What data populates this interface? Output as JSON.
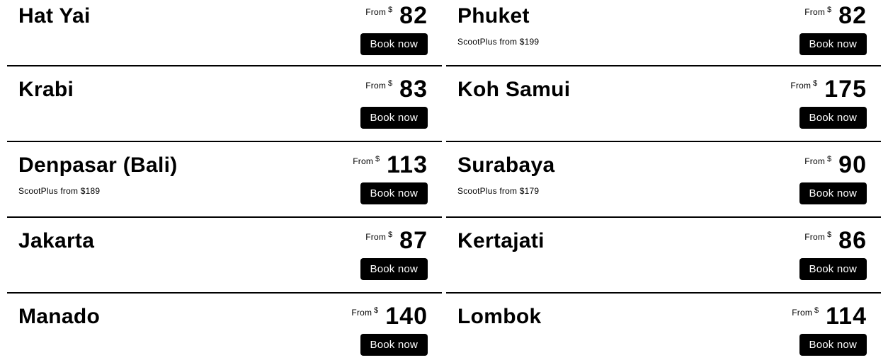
{
  "labels": {
    "from": "From",
    "currency": "$",
    "book_now": "Book now"
  },
  "colors": {
    "text": "#000000",
    "button_background": "#000000",
    "button_text": "#ffffff",
    "divider": "#000000",
    "page_background": "#ffffff"
  },
  "destinations": [
    {
      "name": "Hat Yai",
      "price": "82",
      "scootplus": ""
    },
    {
      "name": "Phuket",
      "price": "82",
      "scootplus": "ScootPlus from $199"
    },
    {
      "name": "Krabi",
      "price": "83",
      "scootplus": ""
    },
    {
      "name": "Koh Samui",
      "price": "175",
      "scootplus": ""
    },
    {
      "name": "Denpasar (Bali)",
      "price": "113",
      "scootplus": "ScootPlus from $189"
    },
    {
      "name": "Surabaya",
      "price": "90",
      "scootplus": "ScootPlus from $179"
    },
    {
      "name": "Jakarta",
      "price": "87",
      "scootplus": ""
    },
    {
      "name": "Kertajati",
      "price": "86",
      "scootplus": ""
    },
    {
      "name": "Manado",
      "price": "140",
      "scootplus": ""
    },
    {
      "name": "Lombok",
      "price": "114",
      "scootplus": ""
    }
  ]
}
